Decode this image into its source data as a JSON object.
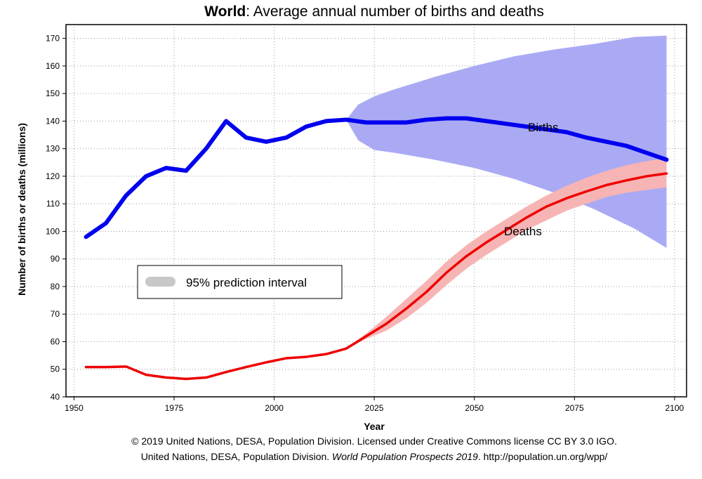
{
  "chart_data": {
    "type": "line",
    "title_bold": "World",
    "title_rest": ": Average annual number of births and deaths",
    "xlabel": "Year",
    "ylabel": "Number of births or deaths (millions)",
    "xlim": [
      1948,
      2103
    ],
    "ylim": [
      40,
      175
    ],
    "x_ticks": [
      1950,
      1975,
      2000,
      2025,
      2050,
      2075,
      2100
    ],
    "y_ticks": [
      40,
      50,
      60,
      70,
      80,
      90,
      100,
      110,
      120,
      130,
      140,
      150,
      160,
      170
    ],
    "grid": true,
    "legend": {
      "label": "95% prediction interval",
      "placement": "center-left"
    },
    "series": [
      {
        "name": "Births",
        "color": "#0000ee",
        "x": [
          1953,
          1958,
          1963,
          1968,
          1973,
          1978,
          1983,
          1988,
          1993,
          1998,
          2003,
          2008,
          2013,
          2018,
          2023,
          2028,
          2033,
          2038,
          2043,
          2048,
          2053,
          2058,
          2063,
          2068,
          2073,
          2078,
          2083,
          2088,
          2093,
          2098
        ],
        "values": [
          98,
          103,
          113,
          120,
          123,
          122,
          130,
          140,
          134,
          132.5,
          134,
          138,
          140,
          140.5,
          139.5,
          139.5,
          139.5,
          140.5,
          141,
          141,
          140,
          139,
          138,
          137,
          136,
          134,
          132.5,
          131,
          128.5,
          126
        ]
      },
      {
        "name": "Deaths",
        "color": "#ee0000",
        "x": [
          1953,
          1958,
          1963,
          1968,
          1973,
          1978,
          1983,
          1988,
          1993,
          1998,
          2003,
          2008,
          2013,
          2018,
          2023,
          2028,
          2033,
          2038,
          2043,
          2048,
          2053,
          2058,
          2063,
          2068,
          2073,
          2078,
          2083,
          2088,
          2093,
          2098
        ],
        "values": [
          50.8,
          50.8,
          51,
          48,
          47,
          46.5,
          47,
          49,
          50.8,
          52.5,
          54,
          54.5,
          55.5,
          57.5,
          62,
          66.5,
          72,
          78,
          85,
          91,
          96,
          100.5,
          105,
          109,
          112,
          114.5,
          116.8,
          118.5,
          120,
          121
        ]
      }
    ],
    "intervals": [
      {
        "series": "Births",
        "color": "#aaaaf4",
        "x": [
          2018,
          2021,
          2025,
          2030,
          2040,
          2050,
          2060,
          2070,
          2080,
          2090,
          2098
        ],
        "lower": [
          140.5,
          133,
          129.5,
          128.5,
          126,
          123,
          119,
          114,
          108,
          101,
          94
        ],
        "upper": [
          140.5,
          146,
          149,
          151.5,
          156,
          160,
          163.5,
          166,
          168,
          170.5,
          171
        ]
      },
      {
        "series": "Deaths",
        "color": "#f7b4b4",
        "x": [
          2018,
          2023,
          2028,
          2033,
          2038,
          2043,
          2048,
          2053,
          2058,
          2063,
          2068,
          2073,
          2078,
          2083,
          2088,
          2093,
          2098
        ],
        "lower": [
          57.5,
          61,
          64,
          68.5,
          74,
          80.5,
          86.5,
          91.5,
          96,
          100.5,
          104,
          107.5,
          110,
          112.5,
          114,
          115,
          116
        ],
        "upper": [
          57.5,
          63,
          69,
          75.5,
          82,
          89,
          95,
          100,
          104.5,
          109,
          113,
          116.5,
          119.5,
          122,
          124,
          125.5,
          126.5
        ]
      }
    ]
  },
  "credits": {
    "line1": "© 2019 United Nations, DESA, Population Division. Licensed under Creative Commons license CC BY 3.0 IGO.",
    "line2_start": "United Nations, DESA, Population Division. ",
    "line2_italic": "World Population Prospects 2019",
    "line2_end": ". http://population.un.org/wpp/"
  }
}
